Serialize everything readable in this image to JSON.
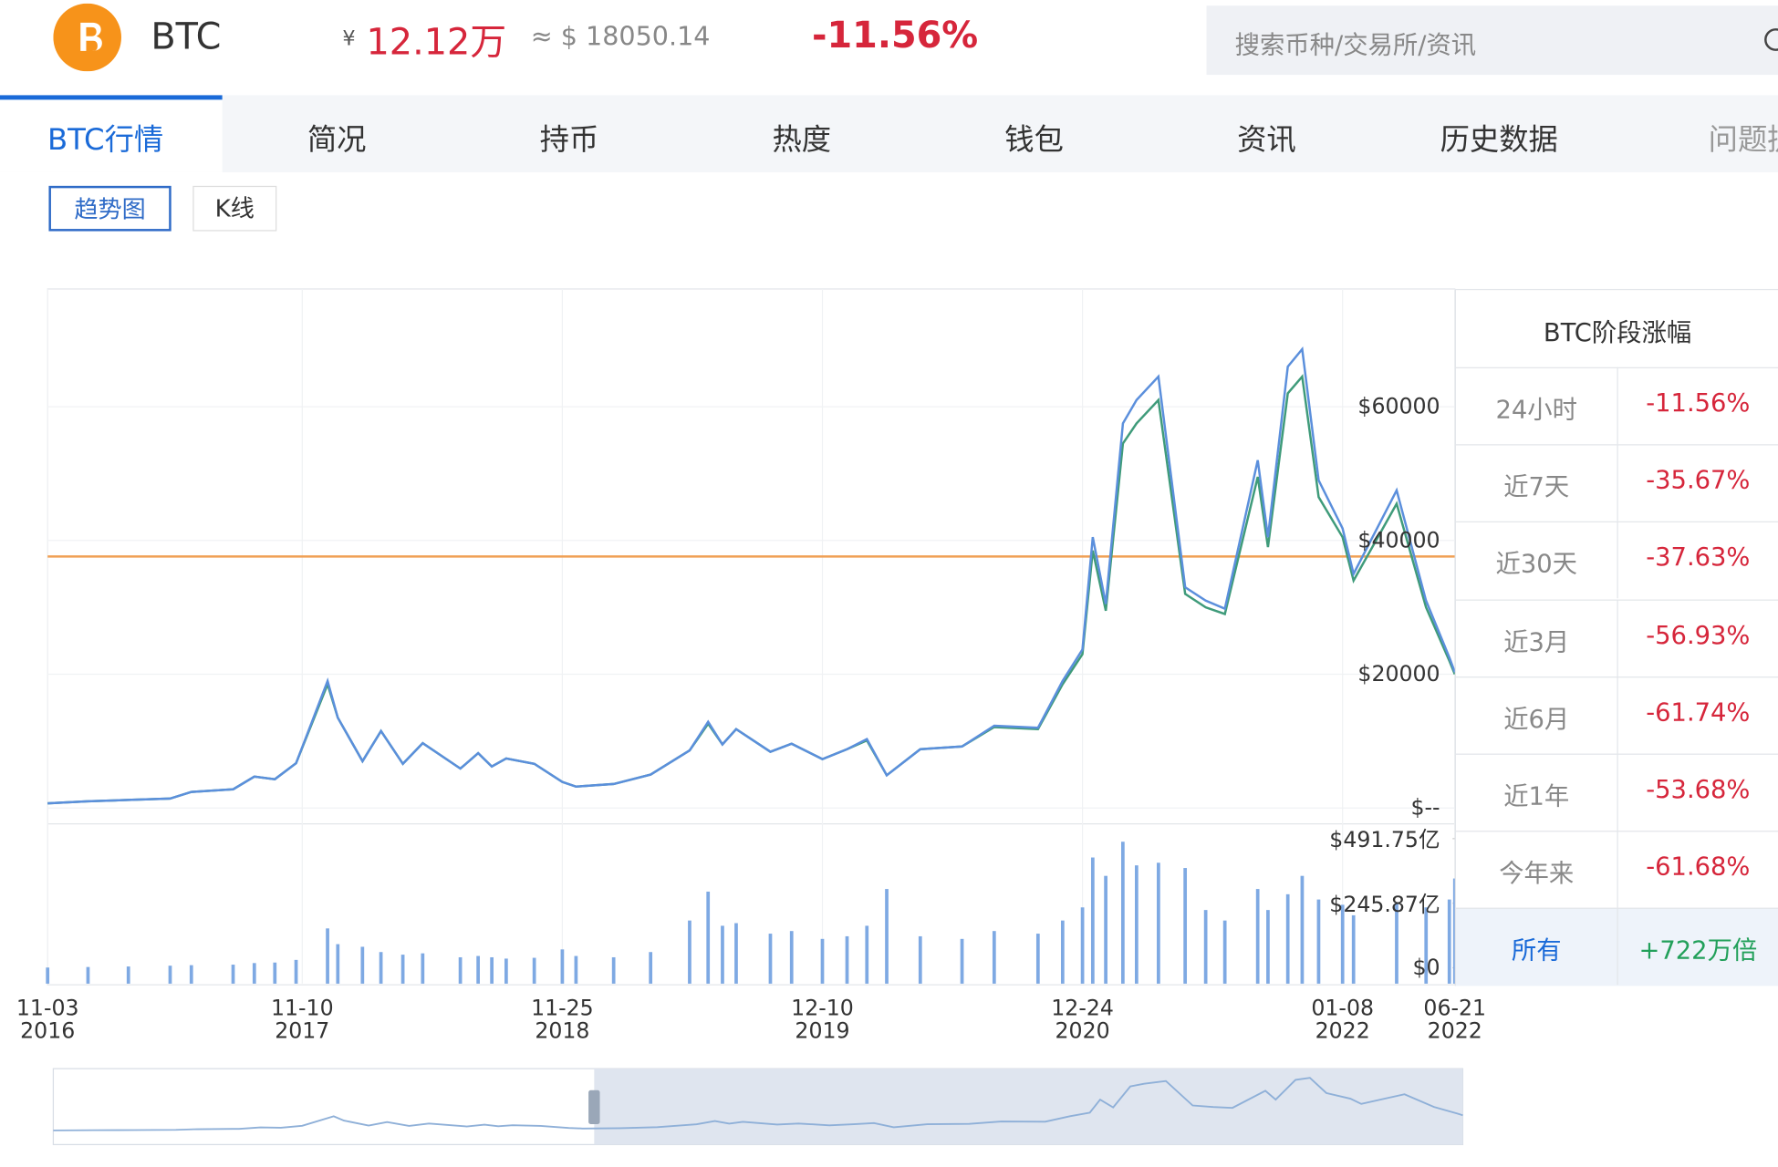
{
  "header": {
    "brand": "BTC",
    "cny_symbol": "¥",
    "price_cny": "12.12万",
    "price_usd": "≈ $ 18050.14",
    "change": "-11.56%",
    "search_placeholder": "搜索币种/交易所/资讯"
  },
  "tabs": [
    "BTC行情",
    "简况",
    "持币",
    "热度",
    "钱包",
    "资讯",
    "历史数据",
    "问题提"
  ],
  "active_tab": 0,
  "buttons": [
    "趋势图",
    "K线"
  ],
  "active_button": 0,
  "chart_data": {
    "type": "line",
    "x": [
      "2016-11-03",
      "2017-01-01",
      "2017-03-01",
      "2017-05-01",
      "2017-06-01",
      "2017-08-01",
      "2017-09-01",
      "2017-10-01",
      "2017-11-01",
      "2017-12-17",
      "2018-01-01",
      "2018-02-06",
      "2018-03-05",
      "2018-04-06",
      "2018-05-05",
      "2018-06-29",
      "2018-07-25",
      "2018-08-14",
      "2018-09-04",
      "2018-10-15",
      "2018-11-25",
      "2018-12-15",
      "2019-02-08",
      "2019-04-03",
      "2019-05-30",
      "2019-06-26",
      "2019-07-17",
      "2019-08-06",
      "2019-09-25",
      "2019-10-26",
      "2019-12-10",
      "2020-01-15",
      "2020-02-13",
      "2020-03-13",
      "2020-05-01",
      "2020-07-01",
      "2020-08-17",
      "2020-10-20",
      "2020-11-25",
      "2020-12-24",
      "2021-01-08",
      "2021-01-27",
      "2021-02-21",
      "2021-03-13",
      "2021-04-14",
      "2021-05-23",
      "2021-06-22",
      "2021-07-20",
      "2021-09-06",
      "2021-09-21",
      "2021-10-20",
      "2021-11-10",
      "2021-12-04",
      "2022-01-08",
      "2022-01-24",
      "2022-03-28",
      "2022-05-10",
      "2022-06-13",
      "2022-06-21"
    ],
    "series": [
      {
        "color": "#5b8fdc",
        "values": [
          690,
          1000,
          1200,
          1400,
          2400,
          2800,
          4700,
          4300,
          6700,
          19000,
          13500,
          7000,
          11500,
          6600,
          9700,
          5900,
          8200,
          6200,
          7400,
          6600,
          3900,
          3200,
          3600,
          5000,
          8600,
          12900,
          9500,
          11800,
          8400,
          9600,
          7300,
          8800,
          10300,
          4900,
          8800,
          9200,
          12300,
          12000,
          19000,
          23700,
          40500,
          30500,
          57500,
          61000,
          64500,
          33000,
          31000,
          29800,
          52000,
          40500,
          66000,
          68600,
          49000,
          41800,
          35000,
          47500,
          31000,
          22500,
          20300
        ]
      },
      {
        "color": "#3f9b7a",
        "values": [
          690,
          1000,
          1200,
          1400,
          2400,
          2800,
          4700,
          4300,
          6700,
          18500,
          13500,
          7000,
          11500,
          6600,
          9700,
          5900,
          8200,
          6200,
          7400,
          6600,
          3900,
          3200,
          3600,
          5000,
          8600,
          12600,
          9500,
          11800,
          8400,
          9600,
          7300,
          8800,
          10100,
          4900,
          8800,
          9200,
          12100,
          11800,
          18500,
          23000,
          38500,
          29500,
          54500,
          57500,
          61000,
          32000,
          30000,
          29000,
          49500,
          39000,
          62000,
          64500,
          46500,
          40500,
          34000,
          45500,
          30000,
          22000,
          20000
        ]
      }
    ],
    "volume": {
      "color": "#7ea9e3",
      "axis": "y2",
      "values": [
        1,
        3,
        5,
        8,
        10,
        12,
        18,
        20,
        30,
        150,
        90,
        80,
        60,
        50,
        55,
        40,
        45,
        40,
        35,
        38,
        70,
        45,
        40,
        60,
        180,
        290,
        160,
        170,
        130,
        140,
        110,
        120,
        160,
        300,
        120,
        110,
        140,
        130,
        180,
        230,
        420,
        350,
        480,
        390,
        400,
        380,
        220,
        180,
        300,
        220,
        280,
        350,
        260,
        240,
        200,
        250,
        230,
        260,
        340
      ]
    },
    "reference_line": {
      "value": 37600,
      "color": "#f0a054"
    },
    "xlim": [
      "2016-11-03",
      "2022-06-21"
    ],
    "xticks": [
      {
        "value": "2016-11-03",
        "label": "11-03\n2016"
      },
      {
        "value": "2017-11-10",
        "label": "11-10\n2017"
      },
      {
        "value": "2018-11-25",
        "label": "11-25\n2018"
      },
      {
        "value": "2019-12-10",
        "label": "12-10\n2019"
      },
      {
        "value": "2020-12-24",
        "label": "12-24\n2020"
      },
      {
        "value": "2022-01-08",
        "label": "01-08\n2022"
      },
      {
        "value": "2022-06-21",
        "label": "06-21\n2022"
      }
    ],
    "ylim": [
      0,
      77600
    ],
    "yticks": [
      {
        "value": 0,
        "label": "$--"
      },
      {
        "value": 20000,
        "label": "$20000"
      },
      {
        "value": 40000,
        "label": "$40000"
      },
      {
        "value": 60000,
        "label": "$60000"
      }
    ],
    "y2lim": [
      0,
      548
    ],
    "y2ticks": [
      {
        "value": 0,
        "label": "$0"
      },
      {
        "value": 245.87,
        "label": "$245.87亿"
      },
      {
        "value": 491.75,
        "label": "$491.75亿"
      }
    ],
    "grid": true
  },
  "stats": {
    "title": "BTC阶段涨幅",
    "rows": [
      [
        "24小时",
        "-11.56%"
      ],
      [
        "近7天",
        "-35.67%"
      ],
      [
        "近30天",
        "-37.63%"
      ],
      [
        "近3月",
        "-56.93%"
      ],
      [
        "近6月",
        "-61.74%"
      ],
      [
        "近1年",
        "-53.68%"
      ],
      [
        "今年来",
        "-61.68%"
      ],
      [
        "所有",
        "+722万倍"
      ]
    ]
  }
}
